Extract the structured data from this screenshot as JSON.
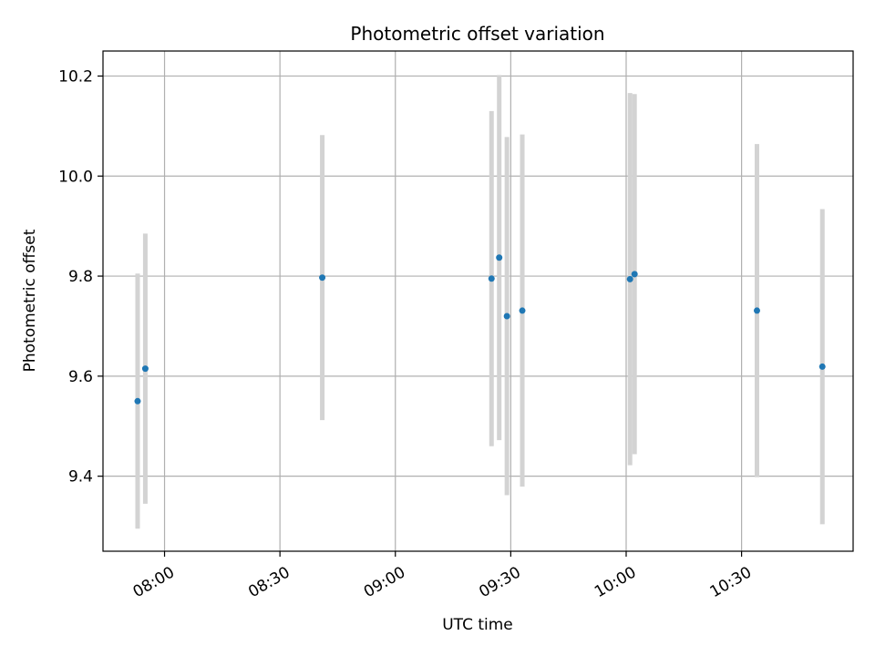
{
  "chart_data": {
    "type": "scatter",
    "title": "Photometric offset variation",
    "xlabel": "UTC time",
    "ylabel": "Photometric offset",
    "xlim": [
      "07:44",
      "10:59"
    ],
    "ylim": [
      9.25,
      10.25
    ],
    "grid": true,
    "x_ticks": [
      "08:00",
      "08:30",
      "09:00",
      "09:30",
      "10:00",
      "10:30"
    ],
    "y_ticks": [
      9.4,
      9.6,
      9.8,
      10.0,
      10.2
    ],
    "colors": {
      "point": "#1f77b4",
      "errorbar": "#d3d3d3",
      "grid": "#b0b0b0"
    },
    "points": [
      {
        "x": "07:53",
        "y": 9.55,
        "yerr": 0.255
      },
      {
        "x": "07:55",
        "y": 9.615,
        "yerr": 0.27
      },
      {
        "x": "08:41",
        "y": 9.797,
        "yerr": 0.285
      },
      {
        "x": "09:25",
        "y": 9.795,
        "yerr": 0.335
      },
      {
        "x": "09:27",
        "y": 9.837,
        "yerr": 0.365
      },
      {
        "x": "09:29",
        "y": 9.72,
        "yerr": 0.358
      },
      {
        "x": "09:33",
        "y": 9.731,
        "yerr": 0.352
      },
      {
        "x": "10:01",
        "y": 9.794,
        "yerr": 0.372
      },
      {
        "x": "10:01",
        "y": 9.804,
        "yerr": 0.36
      },
      {
        "x": "10:34",
        "y": 9.731,
        "yerr": 0.333
      },
      {
        "x": "10:51",
        "y": 9.619,
        "yerr": 0.315
      }
    ]
  }
}
